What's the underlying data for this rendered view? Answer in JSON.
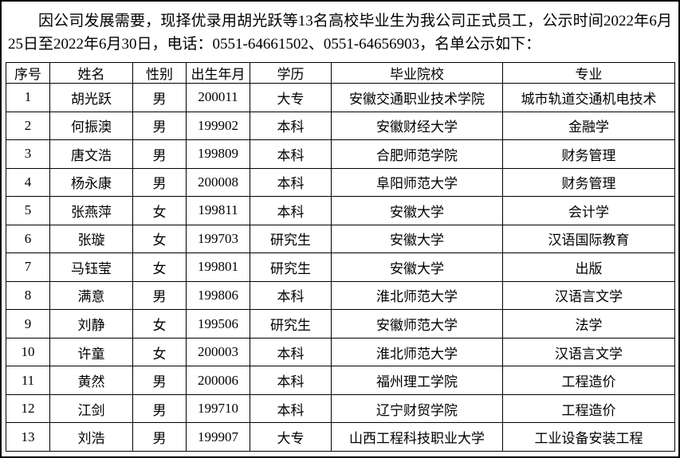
{
  "page": {
    "intro_text": "因公司发展需要，现择优录用胡光跃等13名高校毕业生为我公司正式员工，公示时间2022年6月25日至2022年6月30日，电话：0551-64661502、0551-64656903，名单公示如下："
  },
  "table": {
    "headers": [
      "序号",
      "姓名",
      "性别",
      "出生年月",
      "学历",
      "毕业院校",
      "专业"
    ],
    "rows": [
      [
        "1",
        "胡光跃",
        "男",
        "200011",
        "大专",
        "安徽交通职业技术学院",
        "城市轨道交通机电技术"
      ],
      [
        "2",
        "何振澳",
        "男",
        "199902",
        "本科",
        "安徽财经大学",
        "金融学"
      ],
      [
        "3",
        "唐文浩",
        "男",
        "199809",
        "本科",
        "合肥师范学院",
        "财务管理"
      ],
      [
        "4",
        "杨永康",
        "男",
        "200008",
        "本科",
        "阜阳师范大学",
        "财务管理"
      ],
      [
        "5",
        "张燕萍",
        "女",
        "199811",
        "本科",
        "安徽大学",
        "会计学"
      ],
      [
        "6",
        "张璇",
        "女",
        "199703",
        "研究生",
        "安徽大学",
        "汉语国际教育"
      ],
      [
        "7",
        "马钰莹",
        "女",
        "199801",
        "研究生",
        "安徽大学",
        "出版"
      ],
      [
        "8",
        "满意",
        "男",
        "199806",
        "本科",
        "淮北师范大学",
        "汉语言文学"
      ],
      [
        "9",
        "刘静",
        "女",
        "199506",
        "研究生",
        "安徽师范大学",
        "法学"
      ],
      [
        "10",
        "许童",
        "女",
        "200003",
        "本科",
        "淮北师范大学",
        "汉语言文学"
      ],
      [
        "11",
        "黄然",
        "男",
        "200006",
        "本科",
        "福州理工学院",
        "工程造价"
      ],
      [
        "12",
        "江剑",
        "男",
        "199710",
        "本科",
        "辽宁财贸学院",
        "工程造价"
      ],
      [
        "13",
        "刘浩",
        "男",
        "199907",
        "大专",
        "山西工程科技职业大学",
        "工业设备安装工程"
      ]
    ]
  },
  "colors": {
    "text": "#000000",
    "border": "#000000",
    "background": "#ffffff"
  }
}
